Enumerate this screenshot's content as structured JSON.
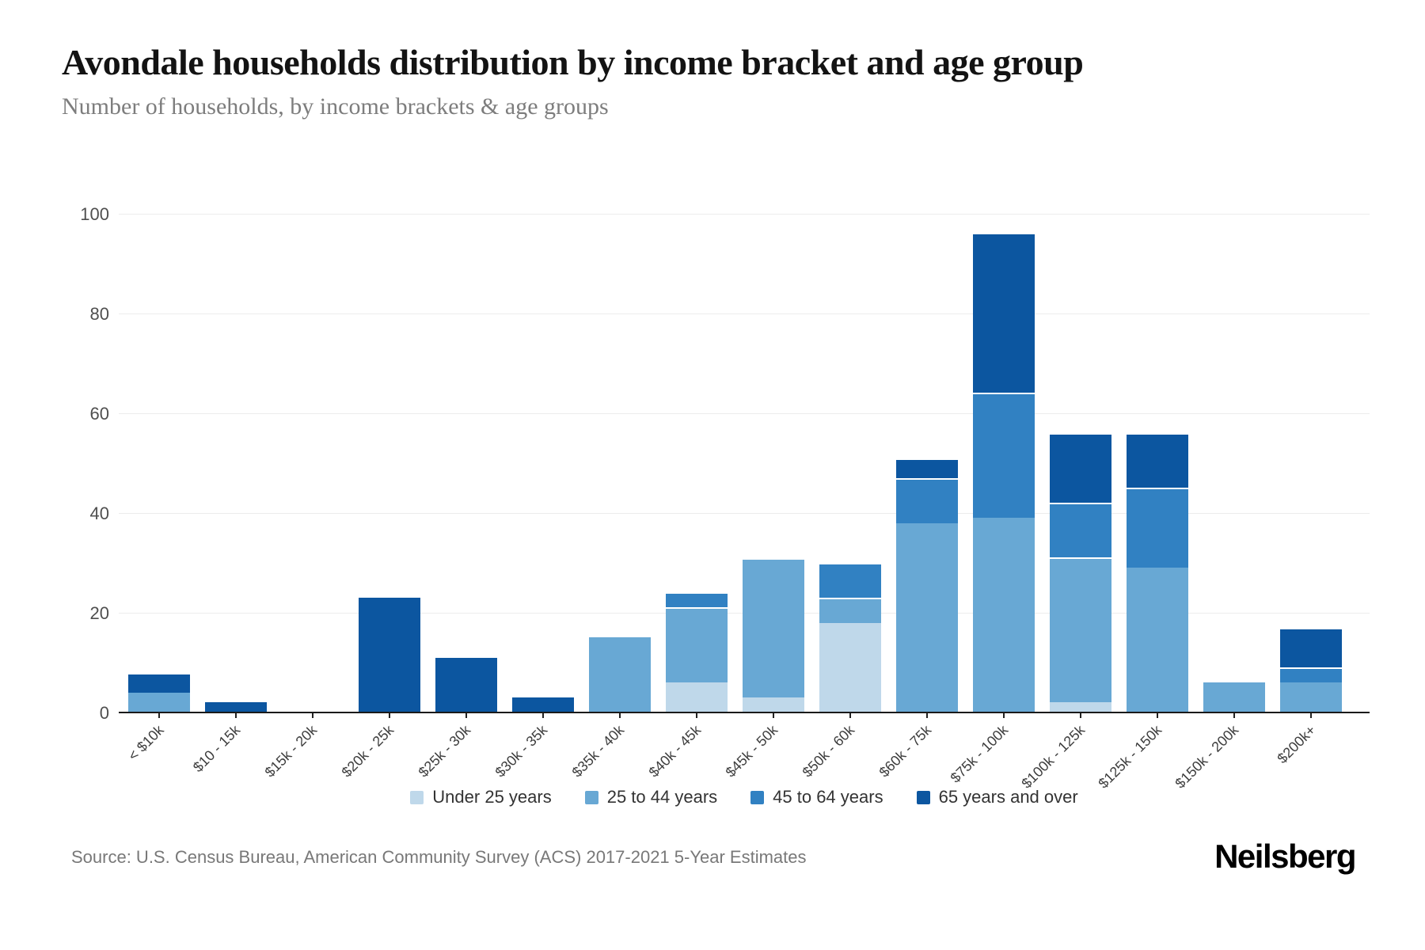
{
  "header": {
    "title": "Avondale households distribution by income bracket and age group",
    "subtitle": "Number of households, by income brackets & age groups"
  },
  "footer": {
    "source": "Source: U.S. Census Bureau, American Community Survey (ACS) 2017-2021 5-Year Estimates",
    "brand": "Neilsberg"
  },
  "chart_data": {
    "type": "bar",
    "stacked": true,
    "title": "Avondale households distribution by income bracket and age group",
    "ylabel": "Number of households",
    "ylim": [
      0,
      100
    ],
    "yticks": [
      0,
      20,
      40,
      60,
      80,
      100
    ],
    "grid": true,
    "legend_position": "bottom",
    "categories": [
      "< $10k",
      "$10 - 15k",
      "$15k - 20k",
      "$20k - 25k",
      "$25k - 30k",
      "$30k - 35k",
      "$35k - 40k",
      "$40k - 45k",
      "$45k - 50k",
      "$50k - 60k",
      "$60k - 75k",
      "$75k - 100k",
      "$100k - 125k",
      "$125k - 150k",
      "$150k - 200k",
      "$200k+"
    ],
    "series": [
      {
        "name": "Under 25 years",
        "color": "#bfd8ea",
        "values": [
          0,
          0,
          0,
          0,
          0,
          0,
          0,
          6,
          3,
          18,
          0,
          0,
          2,
          0,
          0,
          0
        ]
      },
      {
        "name": "25 to 44 years",
        "color": "#68a8d4",
        "values": [
          4,
          0,
          0,
          0,
          0,
          0,
          15,
          15,
          28,
          5,
          38,
          39,
          29,
          29,
          6,
          6
        ]
      },
      {
        "name": "45 to 64 years",
        "color": "#3181c2",
        "values": [
          0,
          0,
          0,
          0,
          0,
          0,
          0,
          3,
          0,
          7,
          9,
          25,
          11,
          16,
          0,
          3
        ]
      },
      {
        "name": "65 years and over",
        "color": "#0c56a0",
        "values": [
          4,
          2,
          0,
          23,
          11,
          3,
          0,
          0,
          0,
          0,
          4,
          32,
          14,
          11,
          0,
          8
        ]
      }
    ],
    "totals": [
      8,
      2,
      0,
      23,
      11,
      3,
      15,
      24,
      31,
      30,
      51,
      96,
      56,
      56,
      6,
      17
    ]
  }
}
